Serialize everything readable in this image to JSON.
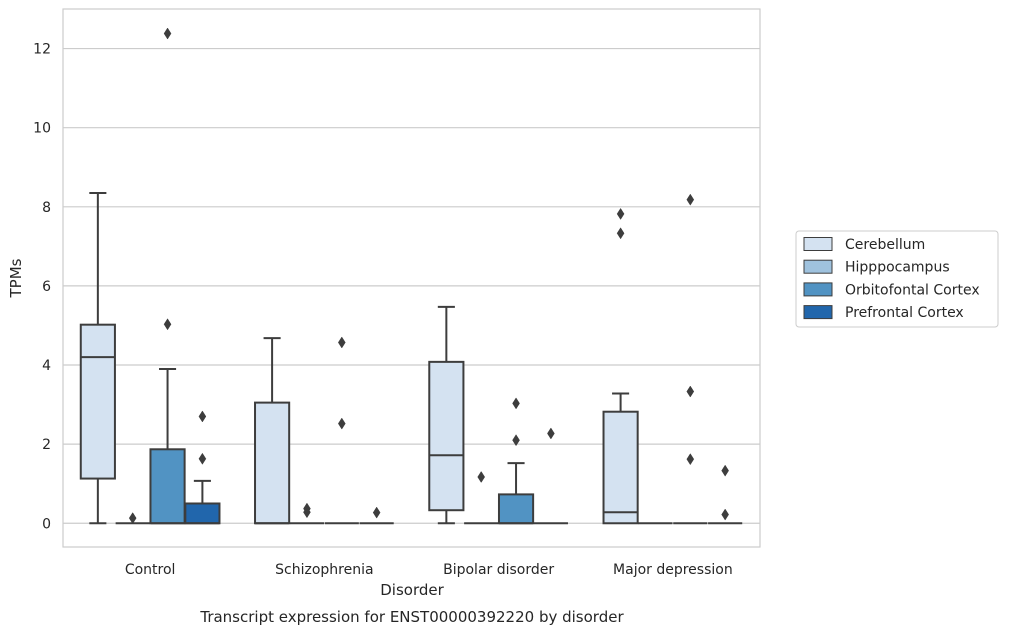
{
  "chart_data": {
    "type": "box",
    "title": "Transcript expression for ENST00000392220 by disorder",
    "xlabel": "Disorder",
    "ylabel": "TPMs",
    "ylim": [
      -0.6,
      13.0
    ],
    "yticks": [
      0,
      2,
      4,
      6,
      8,
      10,
      12
    ],
    "grid": true,
    "legend_position": "right",
    "categories": [
      "Control",
      "Schizophrenia",
      "Bipolar disorder",
      "Major depression"
    ],
    "series": [
      {
        "name": "Cerebellum",
        "color": "#d4e2f1",
        "boxes": [
          {
            "q1": 1.13,
            "median": 4.2,
            "q3": 5.02,
            "whisker_low": 0.0,
            "whisker_high": 8.35,
            "outliers": []
          },
          {
            "q1": 0.0,
            "median": 0.0,
            "q3": 3.05,
            "whisker_low": 0.0,
            "whisker_high": 4.68,
            "outliers": []
          },
          {
            "q1": 0.33,
            "median": 1.72,
            "q3": 4.08,
            "whisker_low": 0.0,
            "whisker_high": 5.47,
            "outliers": []
          },
          {
            "q1": 0.0,
            "median": 0.28,
            "q3": 2.82,
            "whisker_low": 0.0,
            "whisker_high": 3.28,
            "outliers": [
              7.33,
              7.82
            ]
          }
        ]
      },
      {
        "name": "Hipppocampus",
        "color": "#9fc2de",
        "boxes": [
          {
            "q1": 0.0,
            "median": 0.0,
            "q3": 0.0,
            "whisker_low": 0.0,
            "whisker_high": 0.0,
            "outliers": [
              0.13
            ]
          },
          {
            "q1": 0.0,
            "median": 0.0,
            "q3": 0.0,
            "whisker_low": 0.0,
            "whisker_high": 0.0,
            "outliers": [
              0.28,
              0.37
            ]
          },
          {
            "q1": 0.0,
            "median": 0.0,
            "q3": 0.0,
            "whisker_low": 0.0,
            "whisker_high": 0.0,
            "outliers": [
              1.17
            ]
          },
          {
            "q1": 0.0,
            "median": 0.0,
            "q3": 0.0,
            "whisker_low": 0.0,
            "whisker_high": 0.0,
            "outliers": []
          }
        ]
      },
      {
        "name": "Orbitofontal Cortex",
        "color": "#5193c3",
        "boxes": [
          {
            "q1": 0.0,
            "median": 0.0,
            "q3": 1.87,
            "whisker_low": 0.0,
            "whisker_high": 3.9,
            "outliers": [
              5.03,
              12.38
            ]
          },
          {
            "q1": 0.0,
            "median": 0.0,
            "q3": 0.0,
            "whisker_low": 0.0,
            "whisker_high": 0.0,
            "outliers": [
              2.52,
              4.57
            ]
          },
          {
            "q1": 0.0,
            "median": 0.0,
            "q3": 0.73,
            "whisker_low": 0.0,
            "whisker_high": 1.52,
            "outliers": [
              2.1,
              3.03
            ]
          },
          {
            "q1": 0.0,
            "median": 0.0,
            "q3": 0.0,
            "whisker_low": 0.0,
            "whisker_high": 0.0,
            "outliers": [
              1.62,
              3.33,
              8.18
            ]
          }
        ]
      },
      {
        "name": "Prefrontal Cortex",
        "color": "#2166ac",
        "boxes": [
          {
            "q1": 0.0,
            "median": 0.0,
            "q3": 0.5,
            "whisker_low": 0.0,
            "whisker_high": 1.07,
            "outliers": [
              1.63,
              2.7
            ]
          },
          {
            "q1": 0.0,
            "median": 0.0,
            "q3": 0.0,
            "whisker_low": 0.0,
            "whisker_high": 0.0,
            "outliers": [
              0.27
            ]
          },
          {
            "q1": 0.0,
            "median": 0.0,
            "q3": 0.0,
            "whisker_low": 0.0,
            "whisker_high": 0.0,
            "outliers": [
              2.27
            ]
          },
          {
            "q1": 0.0,
            "median": 0.0,
            "q3": 0.0,
            "whisker_low": 0.0,
            "whisker_high": 0.0,
            "outliers": [
              0.22,
              1.33
            ]
          }
        ]
      }
    ]
  }
}
